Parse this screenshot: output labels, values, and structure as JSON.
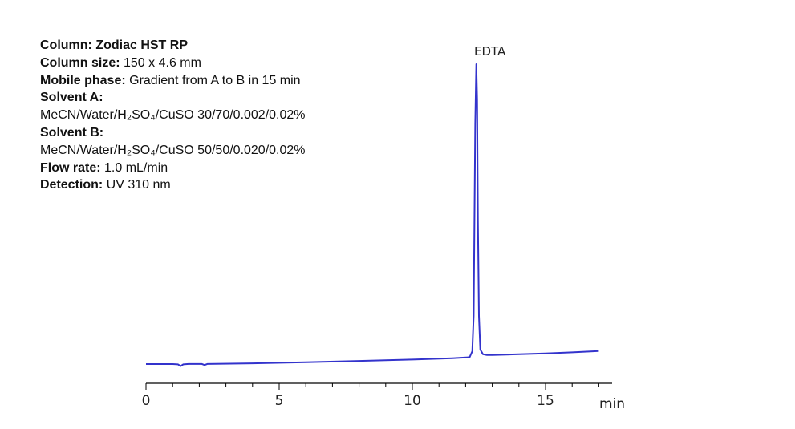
{
  "conditions": {
    "column": {
      "label": "Column: Zodiac HST RP"
    },
    "column_size": {
      "label": "Column size:",
      "value": " 150 x 4.6 mm"
    },
    "mobile_phase": {
      "label": "Mobile phase:",
      "value": " Gradient from A to B in 15 min"
    },
    "solvent_a": {
      "label": "Solvent A:",
      "value": "MeCN/Water/H₂SO₄/CuSO 30/70/0.002/0.02%"
    },
    "solvent_b": {
      "label": "Solvent B:",
      "value": "MeCN/Water/H₂SO₄/CuSO 50/50/0.020/0.02%"
    },
    "flow_rate": {
      "label": "Flow rate:",
      "value": " 1.0 mL/min"
    },
    "detection": {
      "label": "Detection:",
      "value": " UV 310 nm"
    }
  },
  "chart_data": {
    "type": "line",
    "xlabel": "min",
    "xlim": [
      0,
      17.5
    ],
    "x_ticks": [
      0,
      5,
      10,
      15
    ],
    "x_minor_step": 1,
    "line_color": "#3333cc",
    "grid": false,
    "peaks": [
      {
        "label": "EDTA",
        "x": 12.4
      }
    ],
    "series": [
      {
        "x": [
          0,
          1.0,
          1.2,
          1.3,
          1.4,
          1.6,
          2.1,
          2.2,
          2.3,
          2.6,
          4,
          6,
          8,
          10,
          11.5,
          12.15,
          12.25,
          12.3,
          12.33,
          12.36,
          12.4,
          12.43,
          12.46,
          12.5,
          12.55,
          12.65,
          12.8,
          13,
          14,
          15,
          16,
          17.0
        ],
        "y": [
          0,
          0,
          -0.4,
          -2.5,
          -0.4,
          0.05,
          0.1,
          -1.2,
          0.15,
          0.3,
          0.9,
          2.2,
          3.9,
          5.6,
          7.3,
          8.5,
          16,
          60,
          180,
          300,
          374,
          330,
          180,
          60,
          18,
          12.2,
          11.2,
          11.3,
          12.2,
          13.2,
          14.6,
          16.2
        ]
      }
    ]
  }
}
